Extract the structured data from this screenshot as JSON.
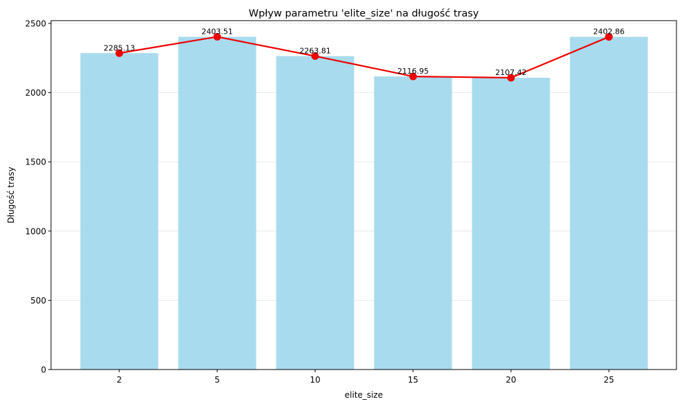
{
  "chart_data": {
    "type": "bar",
    "title": "Wpływ parametru 'elite_size' na długość trasy",
    "xlabel": "elite_size",
    "ylabel": "Długość trasy",
    "categories": [
      "2",
      "5",
      "10",
      "15",
      "20",
      "25"
    ],
    "values": [
      2285.13,
      2403.51,
      2263.81,
      2116.95,
      2107.42,
      2402.86
    ],
    "data_labels": [
      "2285.13",
      "2403.51",
      "2263.81",
      "2116.95",
      "2107.42",
      "2402.86"
    ],
    "ylim": [
      0,
      2520
    ],
    "yticks": [
      0,
      500,
      1000,
      1500,
      2000,
      2500
    ],
    "ytick_labels": [
      "0",
      "500",
      "1000",
      "1500",
      "2000",
      "2500"
    ],
    "grid": "horizontal",
    "overlay_line": true,
    "colors": {
      "bar": "#a8dbee",
      "line": "#ee0000",
      "marker": "#ee0000"
    }
  }
}
